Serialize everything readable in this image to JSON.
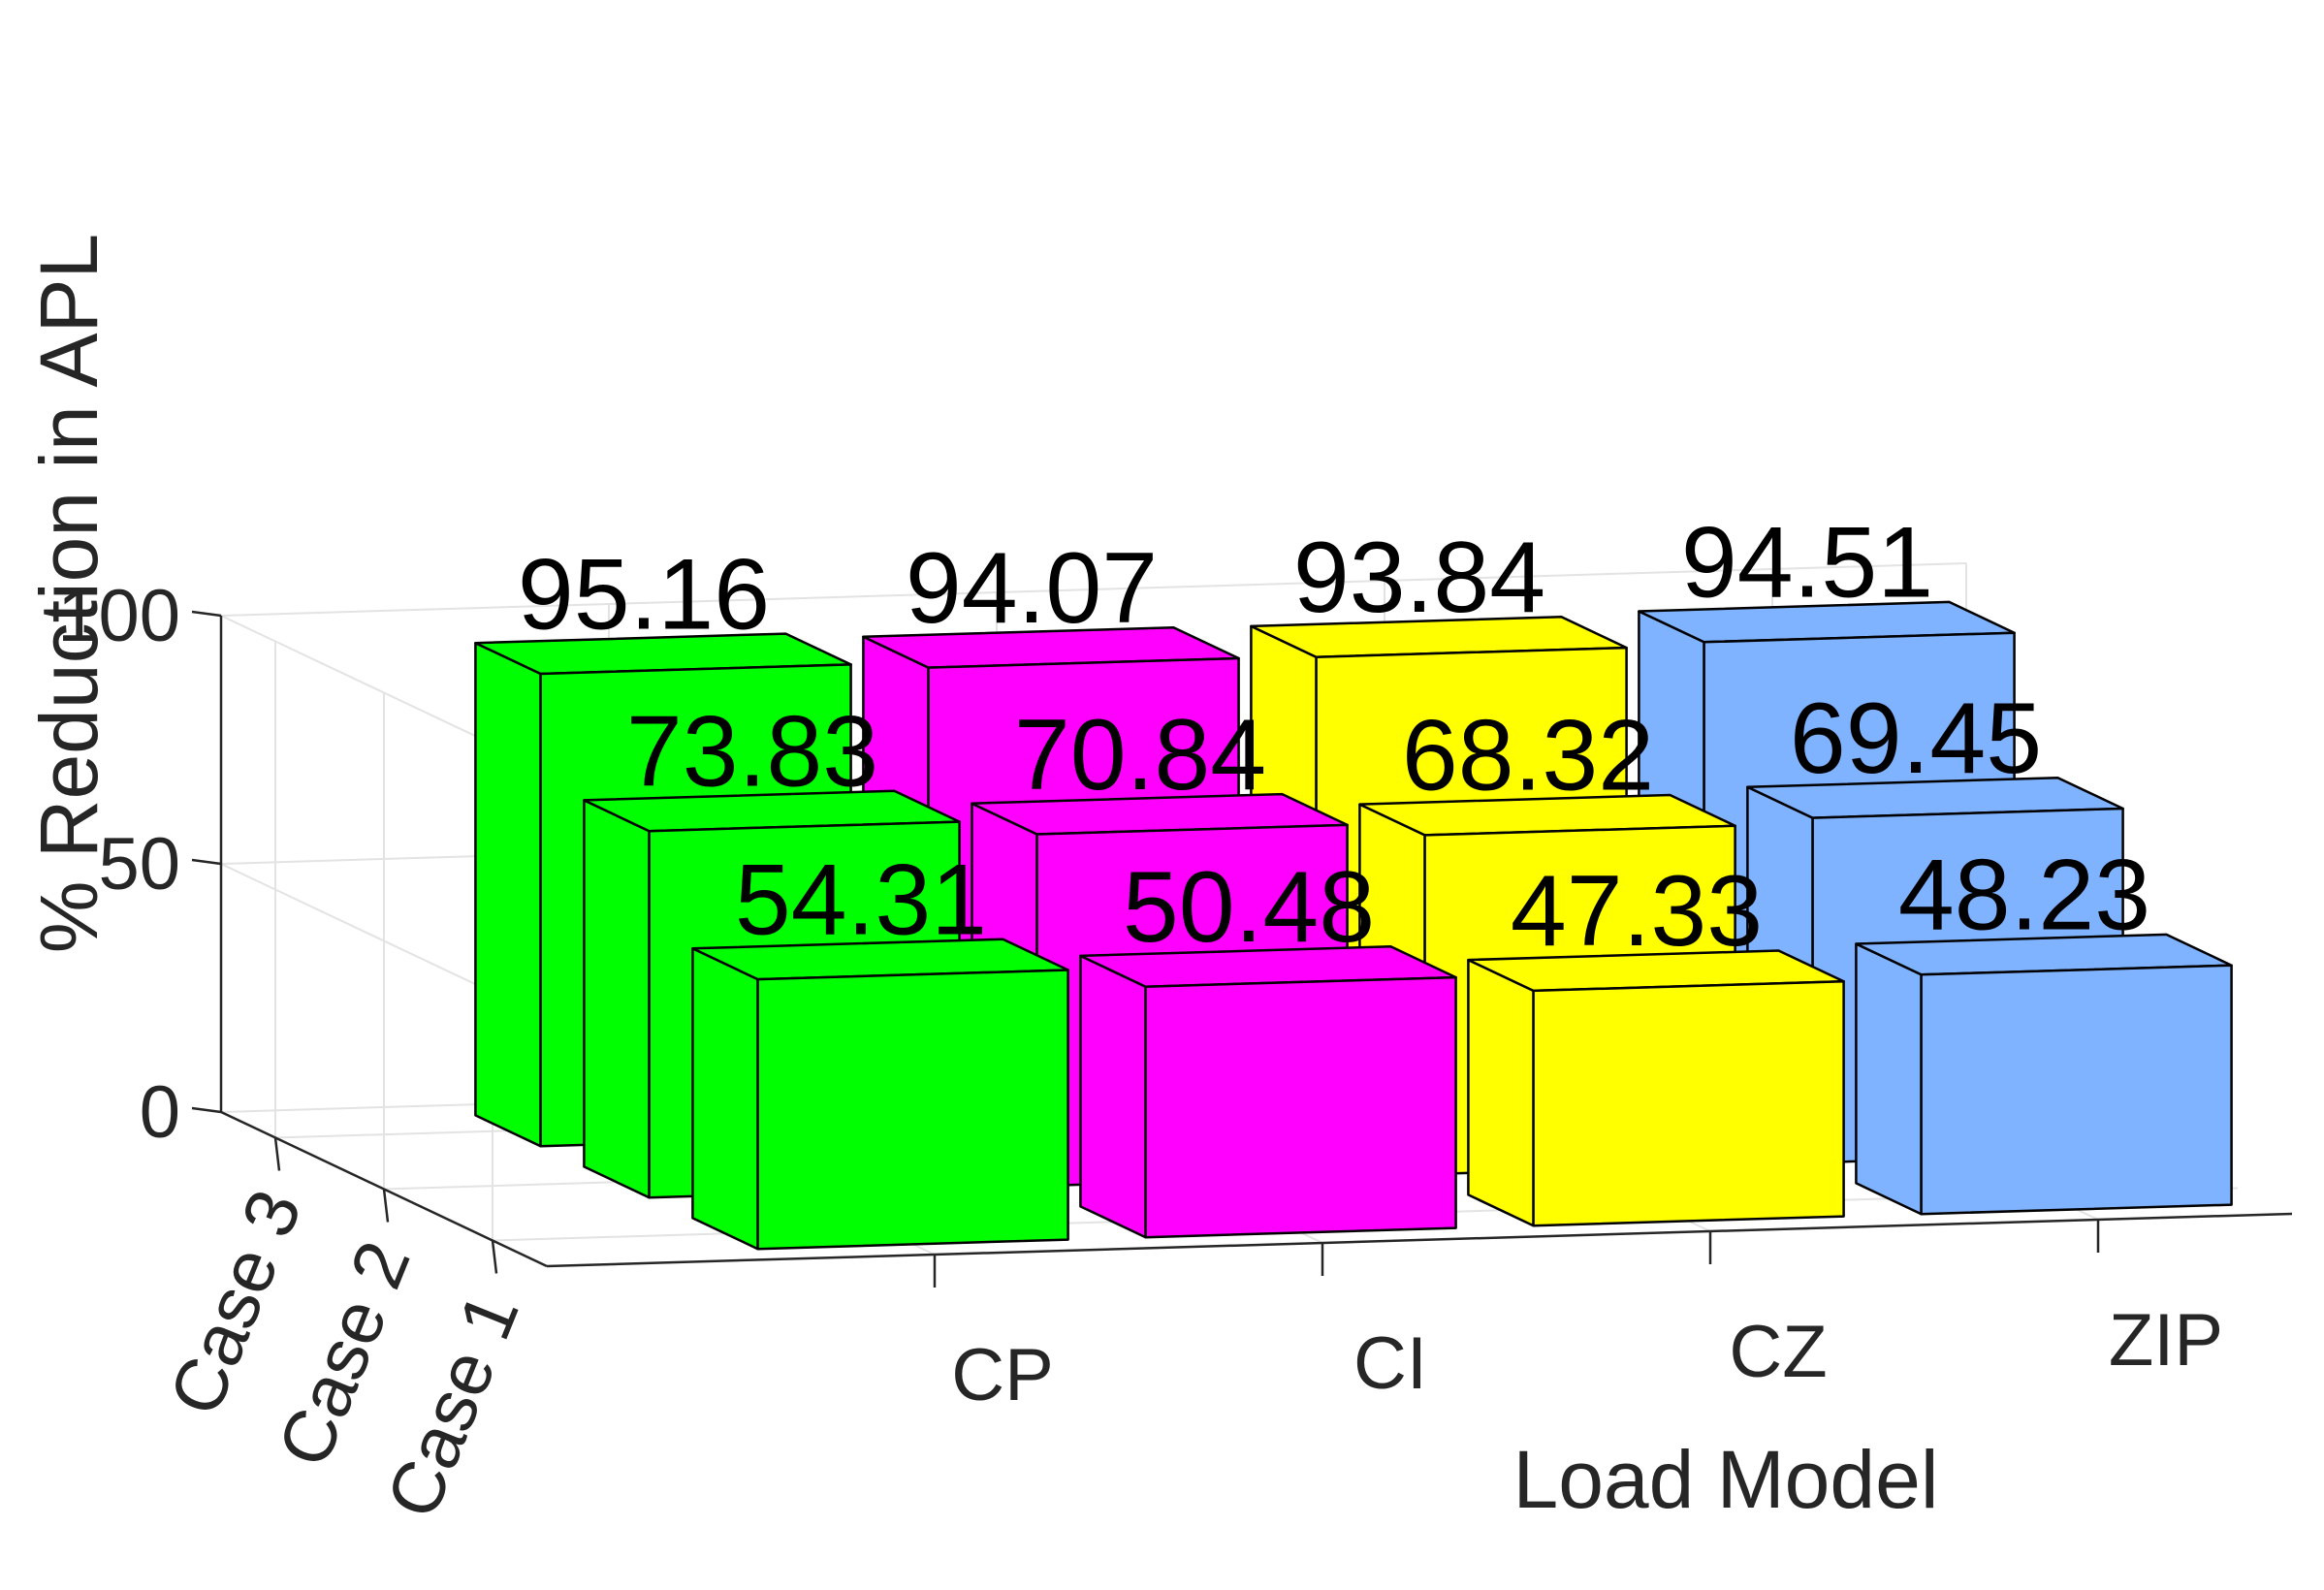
{
  "chart_data": {
    "type": "bar",
    "subtype": "3d-grouped",
    "title": "",
    "xlabel": "Load Model",
    "ylabel": "% Reduction in APL",
    "categories": [
      "CP",
      "CI",
      "CZ",
      "ZIP"
    ],
    "series": [
      {
        "name": "Case 3",
        "values": [
          95.16,
          94.07,
          93.84,
          94.51
        ]
      },
      {
        "name": "Case 2",
        "values": [
          73.83,
          70.84,
          68.32,
          69.45
        ]
      },
      {
        "name": "Case 1",
        "values": [
          54.31,
          50.48,
          47.33,
          48.23
        ]
      }
    ],
    "category_colors": [
      "#00ff00",
      "#ff00ff",
      "#ffff00",
      "#80b3ff"
    ],
    "zlim": [
      0,
      100
    ],
    "z_ticks": [
      "0",
      "50",
      "100"
    ],
    "grid": true,
    "data_labels": true,
    "legend": "none"
  }
}
